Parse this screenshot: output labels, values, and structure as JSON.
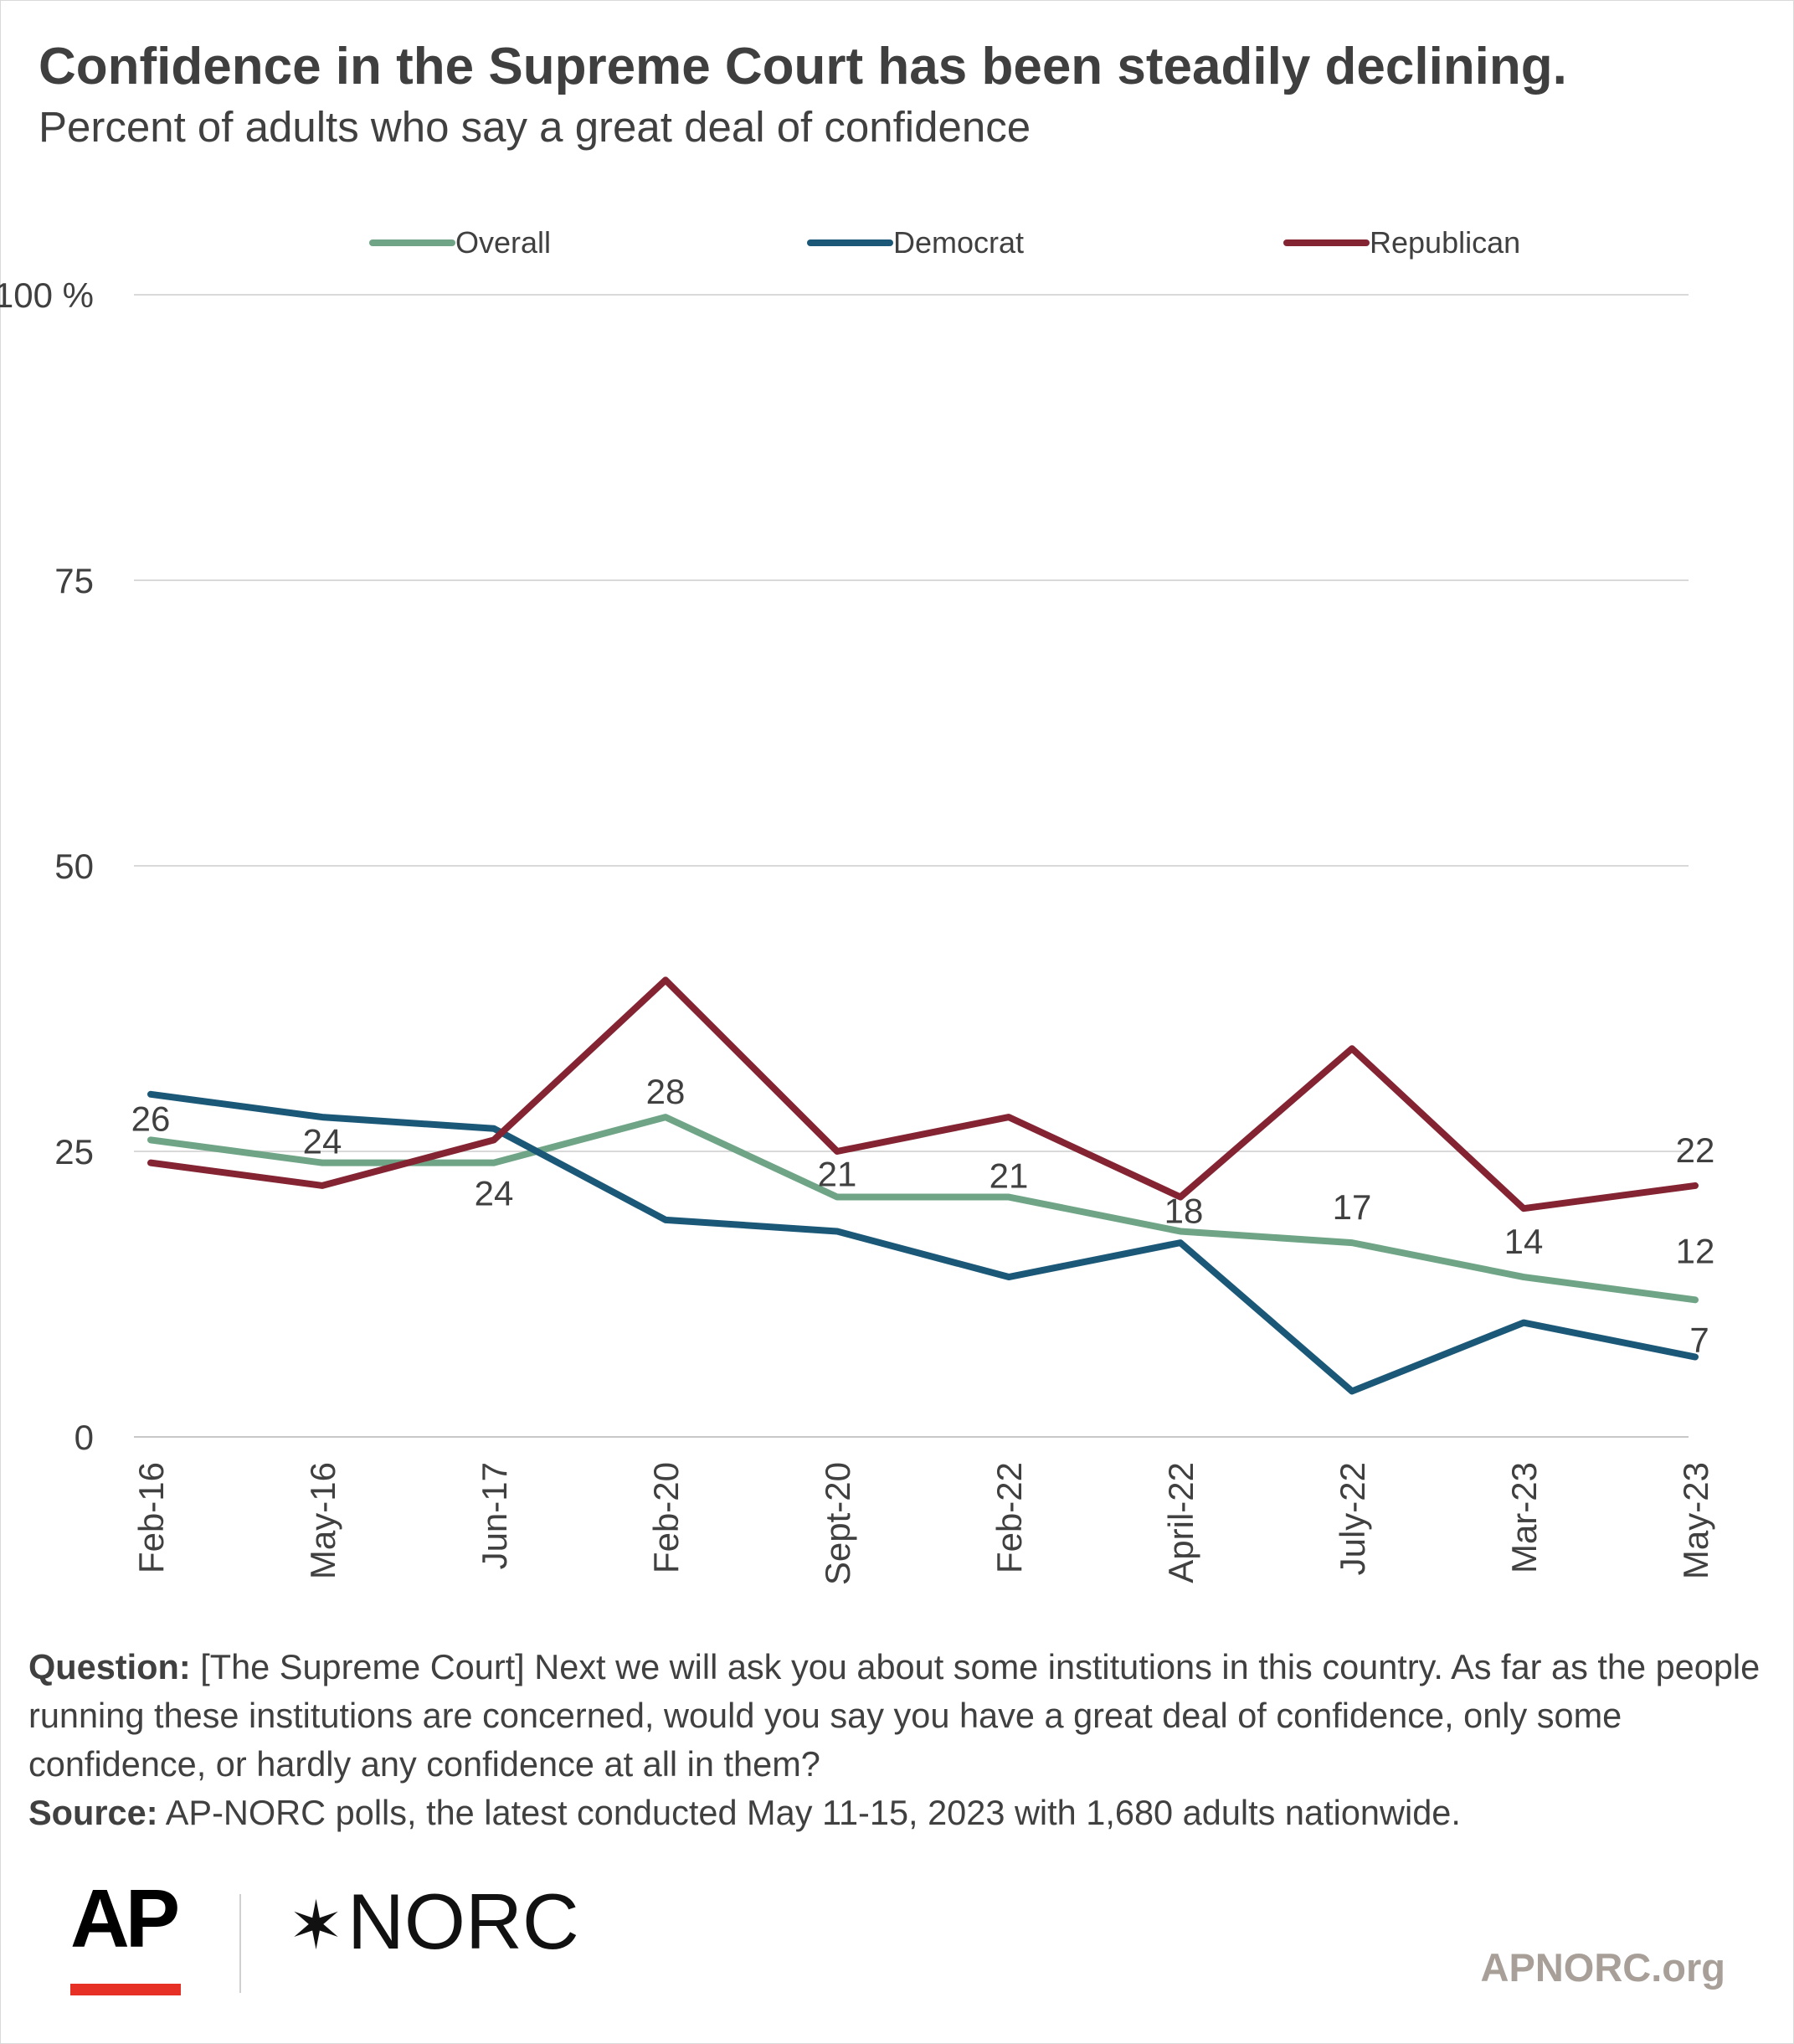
{
  "header": {
    "title": "Confidence in the Supreme Court has been steadily declining.",
    "subtitle": "Percent of adults who say a great deal of confidence"
  },
  "chart_data": {
    "type": "line",
    "categories": [
      "Feb-16",
      "May-16",
      "Jun-17",
      "Feb-20",
      "Sept-20",
      "Feb-22",
      "April-22",
      "July-22",
      "Mar-23",
      "May-23"
    ],
    "series": [
      {
        "name": "Overall",
        "color": "#6fa586",
        "values": [
          26,
          24,
          24,
          28,
          21,
          21,
          18,
          17,
          14,
          12
        ],
        "labeled_values": [
          "26",
          "24",
          "24",
          "28",
          "21",
          "21",
          "18",
          "17",
          "14",
          "12"
        ]
      },
      {
        "name": "Democrat",
        "color": "#1b5878",
        "values": [
          30,
          28,
          27,
          19,
          18,
          14,
          17,
          4,
          10,
          7
        ],
        "labeled_values": [
          "",
          "",
          "",
          "",
          "",
          "",
          "",
          "",
          "",
          "7"
        ]
      },
      {
        "name": "Republican",
        "color": "#842433",
        "values": [
          24,
          22,
          26,
          40,
          25,
          28,
          21,
          34,
          20,
          22
        ],
        "labeled_values": [
          "",
          "",
          "",
          "",
          "",
          "",
          "",
          "",
          "",
          "22"
        ]
      }
    ],
    "y_ticks": [
      "0",
      "25",
      "50",
      "75",
      "100 %"
    ],
    "y_tick_values": [
      0,
      25,
      50,
      75,
      100
    ],
    "ylim": [
      0,
      100
    ],
    "grid": true,
    "legend_position": "top"
  },
  "notes": {
    "question_label": "Question:",
    "question_text": " [The Supreme Court] Next we will ask you about some institutions in this country. As far as the people running these institutions are concerned, would you say you have a great deal of confidence, only some confidence, or hardly any confidence at all in them?",
    "source_label": "Source:",
    "source_text": " AP-NORC polls, the latest conducted May 11-15, 2023 with 1,680 adults nationwide."
  },
  "footer": {
    "ap_logo": "AP",
    "norc_logo": "NORC",
    "norc_star": "✶",
    "site": "APNORC.org"
  }
}
